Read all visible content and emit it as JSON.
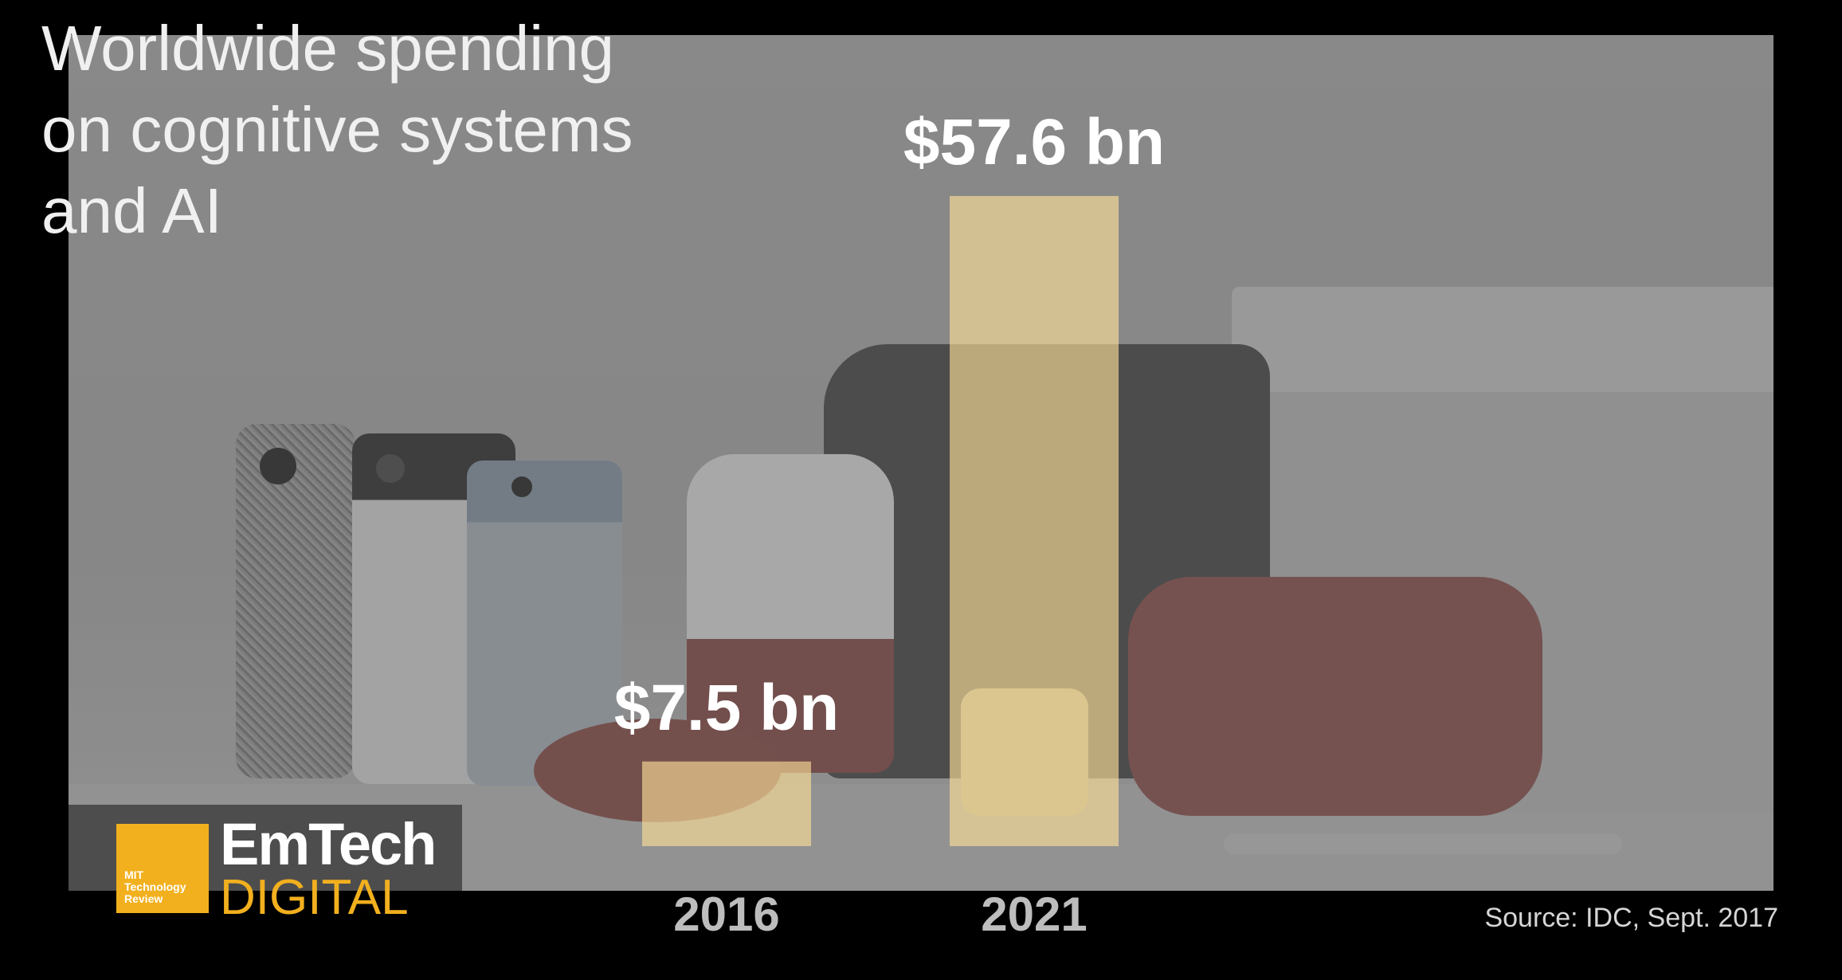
{
  "title_lines": [
    "Worldwide spending",
    "on cognitive systems",
    "and AI"
  ],
  "chart_data": {
    "type": "bar",
    "title": "Worldwide spending on cognitive systems and AI",
    "categories": [
      "2016",
      "2021"
    ],
    "values": [
      7.5,
      57.6
    ],
    "value_labels": [
      "$7.5 bn",
      "$57.6 bn"
    ],
    "unit": "$ bn",
    "bar_color": "#ffe29a",
    "ylim": [
      0,
      57.6
    ]
  },
  "source": "Source: IDC, Sept. 2017",
  "logo": {
    "mit_lines": [
      "MIT",
      "Technology",
      "Review"
    ],
    "emtech": "EmTech",
    "digital": "DIGITAL",
    "accent_color": "#f2b01e"
  }
}
